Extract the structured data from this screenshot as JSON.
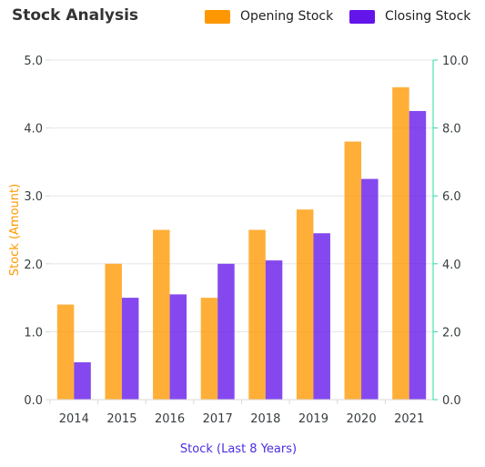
{
  "chart_data": {
    "type": "bar",
    "title": "Stock Analysis",
    "categories": [
      "2014",
      "2015",
      "2016",
      "2017",
      "2018",
      "2019",
      "2020",
      "2021"
    ],
    "series": [
      {
        "name": "Opening Stock",
        "color": "#FF9800",
        "axis": "left",
        "values": [
          1.4,
          2.0,
          2.5,
          1.5,
          2.5,
          2.8,
          3.8,
          4.6
        ]
      },
      {
        "name": "Closing Stock",
        "color": "#6315EA",
        "axis": "right",
        "values": [
          1.1,
          3.0,
          3.1,
          4.0,
          4.1,
          4.9,
          6.5,
          8.5
        ]
      }
    ],
    "xlabel": "Stock (Last 8 Years)",
    "ylabel": "Stock (Amount)",
    "ylim": [
      0,
      5
    ],
    "y2lim": [
      0,
      10
    ],
    "yticks": [
      "0.0",
      "1.0",
      "2.0",
      "3.0",
      "4.0",
      "5.0"
    ],
    "y2ticks": [
      "0.0",
      "2.0",
      "4.0",
      "6.0",
      "8.0",
      "10.0"
    ],
    "legend_position": "top-right",
    "grid": true,
    "colors": {
      "ylabel": "#FF9800",
      "xlabel": "#4B2EE0",
      "right_axis": "#2CD9A8"
    }
  }
}
